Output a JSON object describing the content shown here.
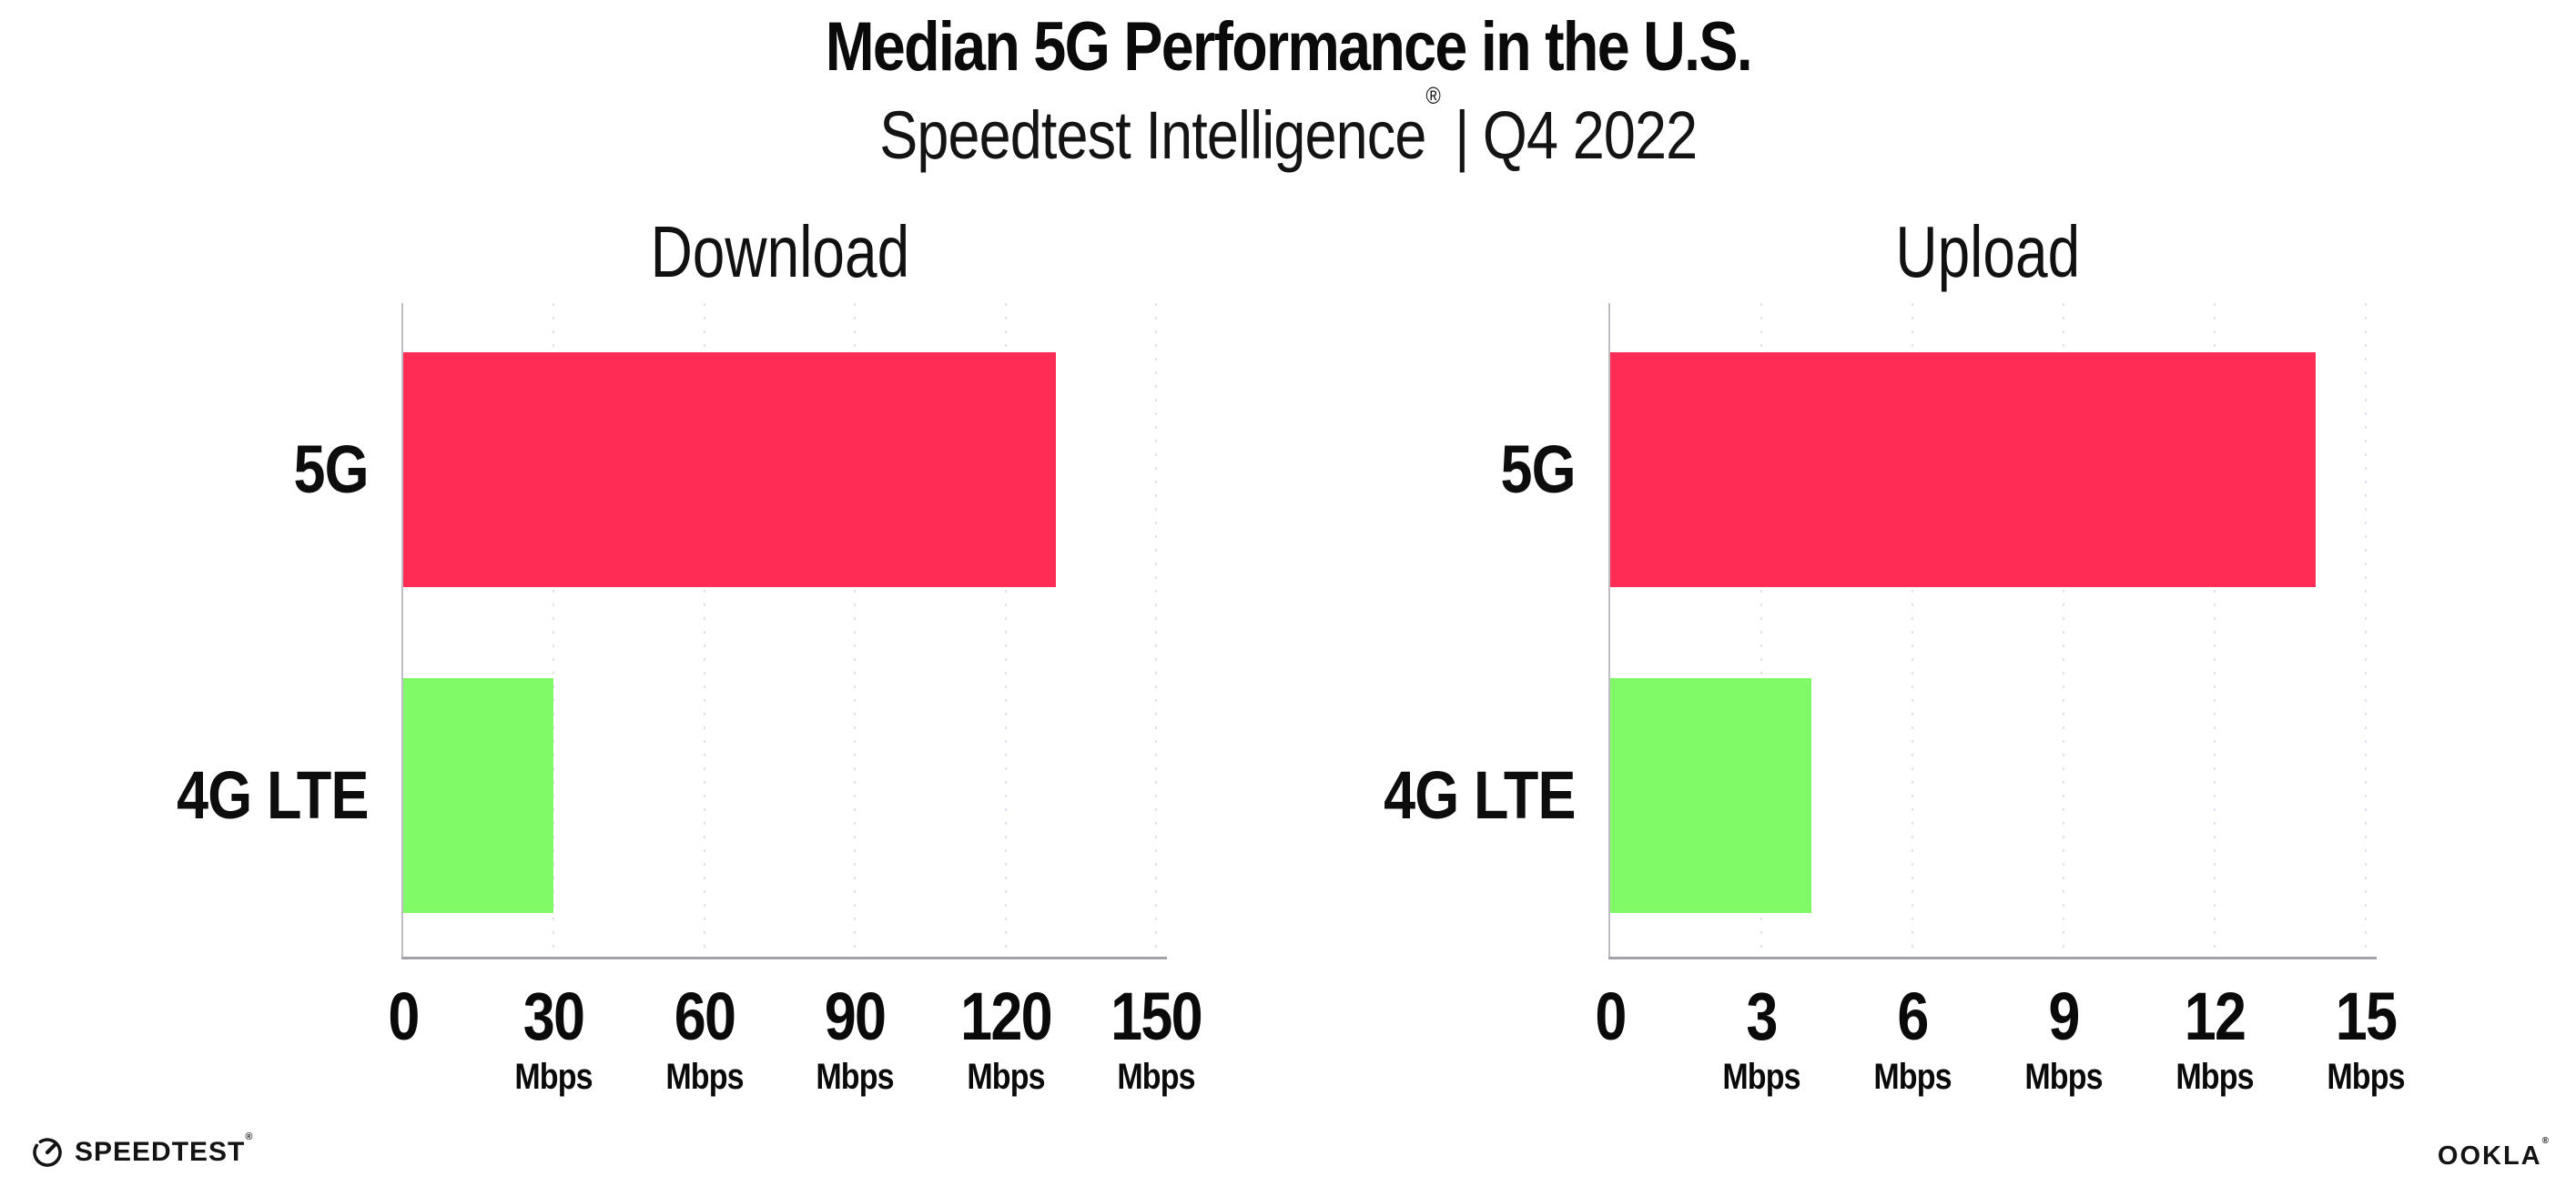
{
  "header": {
    "title": "Median 5G Performance in the U.S.",
    "subtitle_brand": "Speedtest Intelligence",
    "subtitle_reg": "®",
    "subtitle_sep": "|",
    "subtitle_period": "Q4 2022"
  },
  "chart_data": {
    "type": "bar",
    "orientation": "horizontal",
    "title": "Median 5G Performance in the U.S.",
    "subtitle": "Speedtest Intelligence® | Q4 2022",
    "unit": "Mbps",
    "categories": [
      "5G",
      "4G LTE"
    ],
    "colors": {
      "5G": "#FF2D55",
      "4G LTE": "#80FA66"
    },
    "legend": "none",
    "grid": "dotted-vertical",
    "charts": [
      {
        "title": "Download",
        "xlim": [
          0,
          150
        ],
        "ticks": [
          0,
          30,
          60,
          90,
          120,
          150
        ],
        "series": [
          {
            "name": "5G",
            "value": 130
          },
          {
            "name": "4G LTE",
            "value": 30
          }
        ]
      },
      {
        "title": "Upload",
        "xlim": [
          0,
          15
        ],
        "ticks": [
          0,
          3,
          6,
          9,
          12,
          15
        ],
        "series": [
          {
            "name": "5G",
            "value": 14
          },
          {
            "name": "4G LTE",
            "value": 4
          }
        ]
      }
    ]
  },
  "footer": {
    "speedtest_label": "SPEEDTEST",
    "speedtest_reg": "®",
    "ookla_label": "OOKLA",
    "ookla_reg": "®"
  }
}
